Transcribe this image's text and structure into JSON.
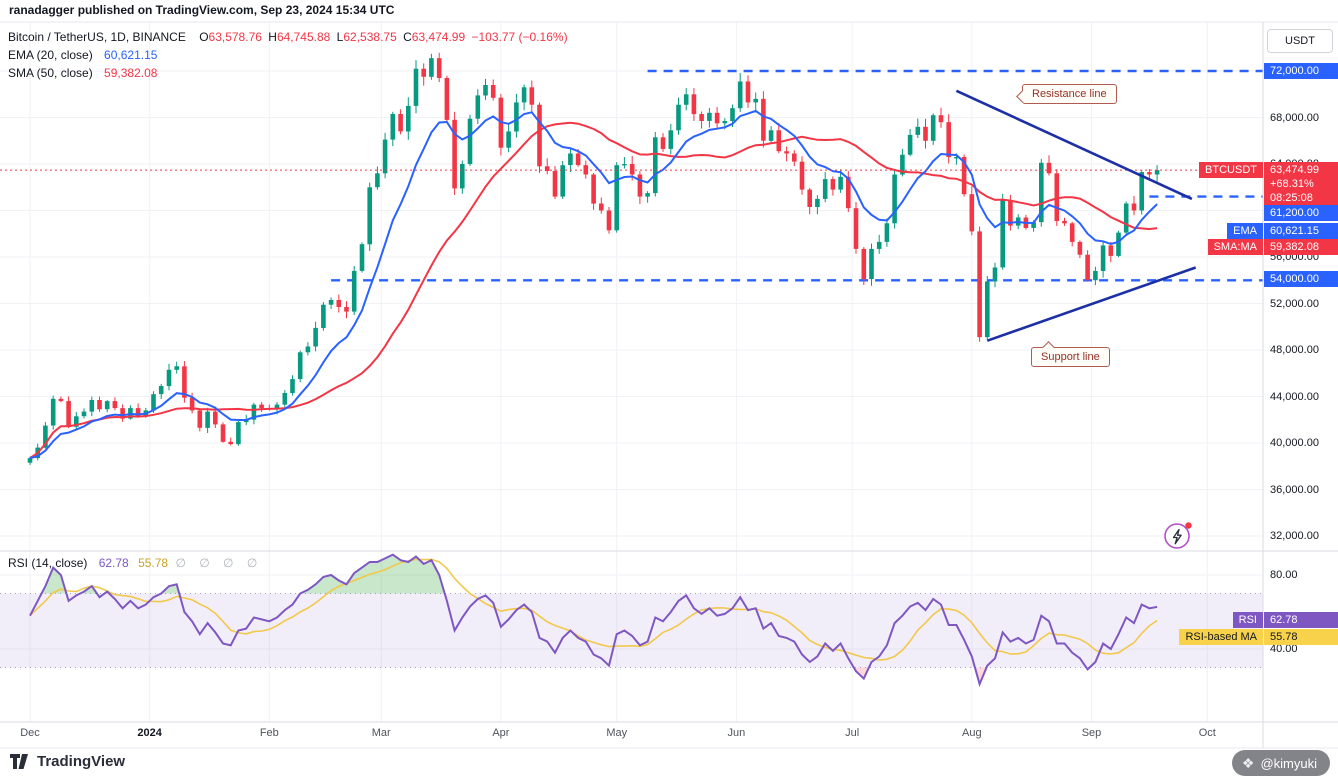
{
  "meta": {
    "publisher_line": "ranadagger published on TradingView.com, Sep 23, 2024 15:34 UTC",
    "watermark": "@kimyuki",
    "logo_text": "TradingView"
  },
  "icons": {
    "watermark_logo": "❖",
    "hidden_indicator": "∅",
    "flash": "⚡"
  },
  "colors": {
    "up": "#089981",
    "down": "#f23645",
    "ema": "#2962ff",
    "sma": "#f23645",
    "rsi": "#7e57c2",
    "rsi_ma": "#f2c84b",
    "level": "#2962ff",
    "trendline": "#1c2fa6",
    "grid": "#f0f2f6"
  },
  "legend": {
    "symbol": "Bitcoin / TetherUS, 1D, BINANCE",
    "o_label": "O",
    "o": "63,578.76",
    "h_label": "H",
    "h": "64,745.88",
    "l_label": "L",
    "l": "62,538.75",
    "c_label": "C",
    "c": "63,474.99",
    "change": "−103.77 (−0.16%)",
    "ema_label": "EMA (20, close)",
    "ema_value": "60,621.15",
    "sma_label": "SMA (50, close)",
    "sma_value": "59,382.08",
    "rsi_label": "RSI (14, close)",
    "rsi_value": "62.78",
    "rsi_ma_value": "55.78",
    "rsi_hidden": "∅ ∅ ∅ ∅"
  },
  "annotations": {
    "resistance_label": "Resistance line",
    "support_label": "Support line"
  },
  "axis": {
    "currency_button": "USDT",
    "price_ticks": [
      {
        "price": 68000,
        "label": "68,000.00"
      },
      {
        "price": 64000,
        "label": "64,000.00"
      },
      {
        "price": 56000,
        "label": "56,000.00"
      },
      {
        "price": 52000,
        "label": "52,000.00"
      },
      {
        "price": 48000,
        "label": "48,000.00"
      },
      {
        "price": 44000,
        "label": "44,000.00"
      },
      {
        "price": 40000,
        "label": "40,000.00"
      },
      {
        "price": 36000,
        "label": "36,000.00"
      },
      {
        "price": 32000,
        "label": "32,000.00"
      }
    ],
    "rsi_ticks": [
      {
        "value": 80,
        "label": "80.00"
      },
      {
        "value": 40,
        "label": "40.00"
      }
    ],
    "badges": {
      "level_72000": "72,000.00",
      "last_price": "63,474.99",
      "last_change_pct": "+68.31%",
      "countdown": "08:25:08",
      "level_61200": "61,200.00",
      "ema": "60,621.15",
      "sma": "59,382.08",
      "level_54000": "54,000.00",
      "rsi": "62.78",
      "rsi_ma": "55.78"
    },
    "series_tags": {
      "symbol": "BTCUSDT",
      "ema": "EMA",
      "sma": "SMA:MA",
      "rsi": "RSI",
      "rsi_ma": "RSI-based MA"
    }
  },
  "chart_data": {
    "type": "candlestick",
    "title": "Bitcoin / TetherUS, 1D, BINANCE",
    "symbol": "BTCUSDT",
    "exchange": "BINANCE",
    "interval": "1D",
    "last_bar": {
      "open": 63578.76,
      "high": 64745.88,
      "low": 62538.75,
      "close": 63474.99,
      "change": -103.77,
      "change_pct": -0.16
    },
    "price_axis": {
      "min": 30800,
      "max": 76200,
      "tick_step": 4000
    },
    "series_start": "2023-12-01",
    "point_interval_days": 2,
    "close": [
      38700,
      39600,
      41500,
      43800,
      43600,
      41400,
      42300,
      42700,
      43700,
      42900,
      43600,
      43000,
      42100,
      43000,
      42300,
      42800,
      44200,
      44900,
      46300,
      46600,
      43900,
      42800,
      41300,
      42700,
      41600,
      40100,
      39900,
      41800,
      42000,
      43300,
      43000,
      42900,
      43300,
      44300,
      45500,
      47800,
      48300,
      49900,
      51900,
      52300,
      51700,
      51300,
      54800,
      57100,
      62000,
      63200,
      66100,
      68300,
      66800,
      69000,
      72200,
      71500,
      73100,
      71400,
      67800,
      61900,
      64000,
      67900,
      69900,
      70800,
      69700,
      65400,
      66800,
      69300,
      70600,
      69100,
      63800,
      63400,
      61200,
      63900,
      64900,
      63900,
      63100,
      60600,
      60000,
      58300,
      63900,
      64000,
      63100,
      61200,
      61500,
      66300,
      65300,
      66900,
      69100,
      70000,
      68300,
      67700,
      68400,
      67500,
      67700,
      68800,
      71100,
      69300,
      69600,
      66000,
      66900,
      65100,
      64900,
      64200,
      61800,
      60300,
      61000,
      62700,
      61800,
      62900,
      60200,
      56700,
      54100,
      56700,
      57300,
      58900,
      63100,
      64800,
      66500,
      67200,
      66000,
      68200,
      67600,
      64600,
      64600,
      61400,
      58200,
      49100,
      53900,
      55100,
      60900,
      58700,
      59400,
      58500,
      59000,
      64100,
      63200,
      59100,
      58900,
      57300,
      56200,
      54000,
      54800,
      57000,
      56100,
      58100,
      60600,
      60000,
      63300,
      63100,
      63475
    ],
    "overlays": {
      "ema20_last": 60621.15,
      "sma50_last": 59382.08
    },
    "levels": [
      {
        "price": 72000,
        "label": "72,000.00",
        "from_day": 160
      },
      {
        "price": 61200,
        "label": "61,200.00",
        "from_day": 290
      },
      {
        "price": 54000,
        "label": "54,000.00",
        "from_day": 78
      }
    ],
    "last_price_line": 63474.99,
    "trendlines": [
      {
        "name": "resistance",
        "from_day": 240,
        "from_price": 70300,
        "to_day": 301,
        "to_price": 61000
      },
      {
        "name": "support",
        "from_day": 248,
        "from_price": 48800,
        "to_day": 302,
        "to_price": 55100
      }
    ],
    "months": [
      {
        "label": "Dec",
        "day": 0
      },
      {
        "label": "2024",
        "day": 31,
        "major": true
      },
      {
        "label": "Feb",
        "day": 62
      },
      {
        "label": "Mar",
        "day": 91
      },
      {
        "label": "Apr",
        "day": 122
      },
      {
        "label": "May",
        "day": 152
      },
      {
        "label": "Jun",
        "day": 183
      },
      {
        "label": "Jul",
        "day": 213
      },
      {
        "label": "Aug",
        "day": 244
      },
      {
        "label": "Sep",
        "day": 275
      },
      {
        "label": "Oct",
        "day": 305
      }
    ],
    "rsi_pane": {
      "rsi_last": 62.78,
      "rsi_ma_last": 55.78,
      "band": [
        30,
        70
      ],
      "axis_ticks": [
        80,
        40
      ],
      "rsi": [
        58,
        66,
        74,
        84,
        80,
        66,
        69,
        71,
        74,
        68,
        71,
        67,
        62,
        66,
        62,
        64,
        68,
        70,
        74,
        75,
        60,
        55,
        48,
        54,
        49,
        43,
        42,
        50,
        51,
        57,
        56,
        55,
        57,
        61,
        64,
        70,
        72,
        75,
        79,
        80,
        77,
        75,
        81,
        84,
        87,
        87,
        89,
        91,
        88,
        87,
        90,
        86,
        88,
        80,
        66,
        50,
        57,
        63,
        67,
        69,
        65,
        52,
        56,
        61,
        64,
        60,
        46,
        44,
        38,
        46,
        50,
        46,
        44,
        37,
        35,
        31,
        48,
        50,
        47,
        42,
        44,
        57,
        55,
        60,
        66,
        69,
        62,
        59,
        62,
        58,
        59,
        62,
        68,
        61,
        62,
        51,
        54,
        47,
        46,
        44,
        37,
        33,
        36,
        43,
        39,
        43,
        35,
        28,
        24,
        33,
        36,
        42,
        54,
        58,
        63,
        65,
        61,
        67,
        64,
        53,
        53,
        45,
        36,
        21,
        31,
        35,
        49,
        44,
        46,
        43,
        45,
        58,
        55,
        43,
        43,
        38,
        35,
        29,
        33,
        43,
        40,
        48,
        57,
        54,
        64,
        62,
        62.78
      ]
    }
  }
}
